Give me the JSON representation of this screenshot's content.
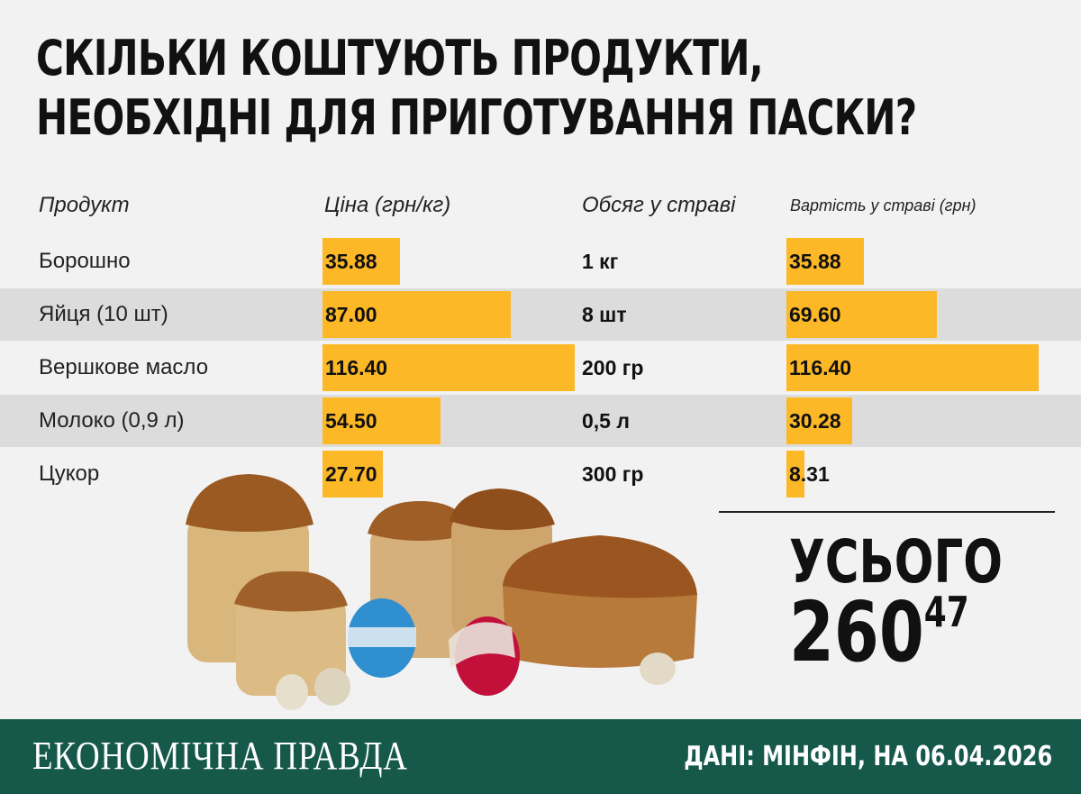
{
  "title": {
    "line1": "СКІЛЬКИ КОШТУЮТЬ ПРОДУКТИ,",
    "line2": "НЕОБХІДНІ ДЛЯ ПРИГОТУВАННЯ ПАСКИ?"
  },
  "headers": {
    "product": "Продукт",
    "price": "Ціна (грн/кг)",
    "volume": "Обсяг у страві",
    "cost": "Вартість у страві (грн)"
  },
  "colors": {
    "bar": "#fcb827",
    "footer": "#16594b",
    "shaded_row": "#dcdcdc"
  },
  "chart_data": {
    "type": "bar",
    "categories": [
      "Борошно",
      "Яйця (10 шт)",
      "Вершкове масло",
      "Молоко (0,9 л)",
      "Цукор"
    ],
    "series": [
      {
        "name": "Ціна (грн/кг)",
        "values": [
          35.88,
          87.0,
          116.4,
          54.5,
          27.7
        ],
        "labels": [
          "35.88",
          "87.00",
          "116.40",
          "54.50",
          "27.70"
        ]
      },
      {
        "name": "Вартість у страві (грн)",
        "values": [
          35.88,
          69.6,
          116.4,
          30.28,
          8.31
        ],
        "labels": [
          "35.88",
          "69.60",
          "116.40",
          "30.28",
          "8.31"
        ]
      }
    ],
    "volumes": [
      "1 кг",
      "8 шт",
      "200 гр",
      "0,5 л",
      "300 гр"
    ]
  },
  "total": {
    "label": "УСЬОГО",
    "whole": "260",
    "fraction": "47"
  },
  "footer": {
    "brand": "ЕКОНОМІЧНА ПРАВДА",
    "source": "ДАНІ: МІНФІН, НА 06.04.2026"
  }
}
